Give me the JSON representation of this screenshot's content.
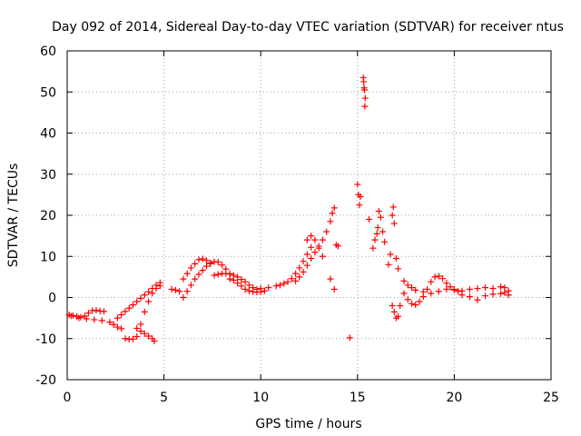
{
  "chart_data": {
    "type": "scatter",
    "title": "Day 092 of 2014, Sidereal Day-to-day VTEC variation (SDTVAR) for receiver ntus",
    "xlabel": "GPS time / hours",
    "ylabel": "SDTVAR / TECUs",
    "xlim": [
      0,
      25
    ],
    "ylim": [
      -20,
      60
    ],
    "grid": true,
    "marker": "+",
    "marker_color": "#ff0000",
    "x_ticks": [
      0,
      5,
      10,
      15,
      20,
      25
    ],
    "x_tick_labels": [
      "0",
      "5",
      "10",
      "15",
      "20",
      "25"
    ],
    "y_ticks": [
      -20,
      -10,
      0,
      10,
      20,
      30,
      40,
      50,
      60
    ],
    "y_tick_labels": [
      "-20",
      "-10",
      "0",
      "10",
      "20",
      "30",
      "40",
      "50",
      "60"
    ],
    "series": [
      {
        "name": "ntus",
        "points": [
          [
            0.1,
            -4.2
          ],
          [
            0.3,
            -4.4
          ],
          [
            0.5,
            -4.6
          ],
          [
            0.7,
            -4.8
          ],
          [
            0.9,
            -4.5
          ],
          [
            1.1,
            -3.8
          ],
          [
            1.3,
            -3.2
          ],
          [
            1.5,
            -3.1
          ],
          [
            1.7,
            -3.3
          ],
          [
            1.9,
            -3.4
          ],
          [
            0.2,
            -4.5
          ],
          [
            0.6,
            -5.0
          ],
          [
            1.0,
            -5.2
          ],
          [
            1.4,
            -5.4
          ],
          [
            1.8,
            -5.6
          ],
          [
            2.2,
            -6.0
          ],
          [
            2.4,
            -6.6
          ],
          [
            2.6,
            -7.2
          ],
          [
            2.8,
            -7.6
          ],
          [
            2.6,
            -5.0
          ],
          [
            2.8,
            -4.2
          ],
          [
            3.0,
            -3.4
          ],
          [
            3.2,
            -2.6
          ],
          [
            3.4,
            -1.8
          ],
          [
            3.6,
            -1.0
          ],
          [
            3.8,
            -0.2
          ],
          [
            4.0,
            0.6
          ],
          [
            4.2,
            1.4
          ],
          [
            4.4,
            2.2
          ],
          [
            4.6,
            3.0
          ],
          [
            4.8,
            3.6
          ],
          [
            3.0,
            -10.0
          ],
          [
            3.2,
            -10.2
          ],
          [
            3.4,
            -10.1
          ],
          [
            3.6,
            -9.5
          ],
          [
            3.8,
            -6.5
          ],
          [
            4.0,
            -3.5
          ],
          [
            4.2,
            -1.0
          ],
          [
            4.4,
            1.0
          ],
          [
            4.6,
            2.2
          ],
          [
            4.8,
            2.8
          ],
          [
            3.6,
            -7.5
          ],
          [
            3.8,
            -8.2
          ],
          [
            4.0,
            -8.8
          ],
          [
            4.2,
            -9.4
          ],
          [
            4.4,
            -10.0
          ],
          [
            4.5,
            -10.6
          ],
          [
            5.4,
            2.0
          ],
          [
            5.6,
            1.8
          ],
          [
            5.8,
            1.5
          ],
          [
            6.0,
            0.0
          ],
          [
            6.2,
            1.5
          ],
          [
            6.4,
            3.0
          ],
          [
            6.6,
            4.5
          ],
          [
            6.8,
            5.6
          ],
          [
            7.0,
            6.6
          ],
          [
            7.2,
            7.6
          ],
          [
            7.4,
            8.4
          ],
          [
            7.6,
            8.7
          ],
          [
            7.8,
            8.6
          ],
          [
            8.0,
            7.9
          ],
          [
            8.2,
            6.9
          ],
          [
            8.4,
            5.8
          ],
          [
            6.0,
            4.5
          ],
          [
            6.2,
            5.8
          ],
          [
            6.4,
            7.2
          ],
          [
            6.6,
            8.2
          ],
          [
            6.8,
            9.2
          ],
          [
            7.0,
            9.4
          ],
          [
            7.2,
            9.0
          ],
          [
            7.4,
            8.2
          ],
          [
            7.6,
            5.4
          ],
          [
            7.8,
            5.6
          ],
          [
            8.0,
            5.8
          ],
          [
            8.2,
            5.8
          ],
          [
            8.4,
            5.7
          ],
          [
            8.6,
            5.4
          ],
          [
            8.8,
            5.0
          ],
          [
            9.0,
            4.4
          ],
          [
            9.2,
            3.8
          ],
          [
            9.4,
            3.0
          ],
          [
            9.6,
            2.4
          ],
          [
            9.8,
            2.0
          ],
          [
            8.4,
            4.5
          ],
          [
            8.6,
            4.2
          ],
          [
            8.8,
            3.5
          ],
          [
            9.0,
            2.8
          ],
          [
            9.2,
            2.0
          ],
          [
            9.4,
            1.6
          ],
          [
            9.6,
            1.4
          ],
          [
            9.8,
            1.3
          ],
          [
            10.0,
            1.4
          ],
          [
            10.2,
            1.6
          ],
          [
            10.0,
            2.2
          ],
          [
            10.4,
            2.4
          ],
          [
            10.8,
            2.8
          ],
          [
            11.0,
            3.0
          ],
          [
            11.2,
            3.4
          ],
          [
            11.4,
            3.8
          ],
          [
            11.6,
            4.6
          ],
          [
            11.8,
            5.8
          ],
          [
            12.0,
            7.2
          ],
          [
            12.2,
            8.8
          ],
          [
            12.4,
            10.5
          ],
          [
            12.6,
            12.2
          ],
          [
            11.8,
            4.0
          ],
          [
            12.0,
            5.0
          ],
          [
            12.2,
            6.2
          ],
          [
            12.4,
            7.8
          ],
          [
            12.6,
            9.5
          ],
          [
            12.8,
            11.0
          ],
          [
            13.0,
            12.5
          ],
          [
            13.2,
            14.0
          ],
          [
            13.4,
            16.0
          ],
          [
            13.6,
            18.5
          ],
          [
            13.7,
            20.5
          ],
          [
            13.8,
            21.8
          ],
          [
            12.4,
            14.0
          ],
          [
            12.6,
            15.0
          ],
          [
            12.8,
            14.0
          ],
          [
            13.0,
            12.0
          ],
          [
            13.2,
            10.0
          ],
          [
            13.6,
            4.5
          ],
          [
            13.8,
            2.0
          ],
          [
            13.9,
            12.8
          ],
          [
            14.0,
            12.5
          ],
          [
            14.6,
            -9.8
          ],
          [
            15.0,
            27.5
          ],
          [
            15.05,
            25.0
          ],
          [
            15.1,
            22.5
          ],
          [
            15.15,
            24.5
          ],
          [
            15.3,
            53.5
          ],
          [
            15.32,
            52.5
          ],
          [
            15.34,
            51.0
          ],
          [
            15.36,
            50.5
          ],
          [
            15.4,
            48.5
          ],
          [
            15.38,
            46.5
          ],
          [
            15.6,
            19.0
          ],
          [
            15.8,
            12.0
          ],
          [
            15.9,
            14.0
          ],
          [
            16.0,
            15.5
          ],
          [
            16.05,
            17.0
          ],
          [
            16.1,
            21.0
          ],
          [
            16.2,
            19.5
          ],
          [
            16.3,
            16.0
          ],
          [
            16.4,
            13.5
          ],
          [
            16.6,
            8.0
          ],
          [
            16.7,
            10.5
          ],
          [
            16.8,
            20.0
          ],
          [
            16.85,
            22.0
          ],
          [
            16.9,
            18.0
          ],
          [
            17.0,
            9.5
          ],
          [
            17.1,
            7.0
          ],
          [
            16.8,
            -2.0
          ],
          [
            16.9,
            -3.5
          ],
          [
            17.0,
            -5.0
          ],
          [
            17.1,
            -4.6
          ],
          [
            17.2,
            -2.0
          ],
          [
            17.4,
            1.0
          ],
          [
            17.6,
            -0.5
          ],
          [
            17.8,
            -1.5
          ],
          [
            18.0,
            -1.8
          ],
          [
            18.2,
            -1.0
          ],
          [
            18.4,
            0.2
          ],
          [
            18.6,
            2.0
          ],
          [
            18.8,
            3.8
          ],
          [
            19.0,
            5.0
          ],
          [
            19.2,
            5.2
          ],
          [
            19.4,
            4.6
          ],
          [
            19.6,
            3.5
          ],
          [
            19.8,
            2.6
          ],
          [
            20.0,
            2.0
          ],
          [
            20.2,
            1.5
          ],
          [
            17.4,
            4.0
          ],
          [
            17.6,
            3.0
          ],
          [
            17.8,
            2.4
          ],
          [
            18.0,
            1.8
          ],
          [
            18.4,
            1.4
          ],
          [
            18.8,
            1.0
          ],
          [
            19.2,
            1.5
          ],
          [
            19.6,
            2.0
          ],
          [
            20.0,
            1.8
          ],
          [
            20.4,
            1.6
          ],
          [
            20.8,
            2.0
          ],
          [
            21.2,
            2.2
          ],
          [
            21.6,
            2.4
          ],
          [
            22.0,
            2.2
          ],
          [
            22.4,
            2.6
          ],
          [
            22.6,
            2.4
          ],
          [
            22.8,
            1.6
          ],
          [
            20.4,
            0.6
          ],
          [
            20.8,
            0.2
          ],
          [
            21.2,
            -0.6
          ],
          [
            21.6,
            0.4
          ],
          [
            22.0,
            0.8
          ],
          [
            22.4,
            0.9
          ],
          [
            22.6,
            1.2
          ],
          [
            22.8,
            0.6
          ]
        ]
      }
    ]
  }
}
